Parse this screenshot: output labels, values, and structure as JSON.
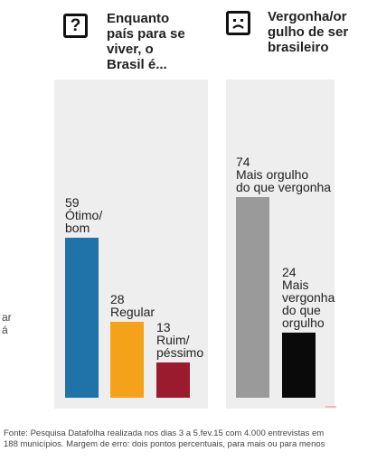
{
  "left_panel": {
    "icon": "question-mark-icon",
    "icon_glyph": "?",
    "title_lines": [
      "Enquanto",
      "país para se",
      "viver, o",
      "Brasil é..."
    ]
  },
  "right_panel": {
    "icon": "frown-face-icon",
    "title_lines": [
      "Vergonha/or",
      "gulho de ser",
      "brasileiro"
    ]
  },
  "cut_off_text": [
    "ar",
    "á"
  ],
  "footer": {
    "line1": "Fonte: Pesquisa Datafolha realizada nos dias 3 a 5.fev.15 com 4.000 entrevistas em",
    "line2": "188 municípios. Margem de erro: dois pontos percentuais, para mais ou para menos"
  },
  "colors": {
    "panel_bg": "#eeeeee",
    "blue": "#1f73a8",
    "orange": "#f5a21b",
    "red": "#9b1b2e",
    "gray": "#9a9a9a",
    "black": "#0a0a0a"
  },
  "chart_data": [
    {
      "type": "bar",
      "title": "Enquanto país para se viver, o Brasil é...",
      "ylim": [
        0,
        80
      ],
      "bars": [
        {
          "value": 59,
          "label_lines": [
            "Ótimo/",
            "bom"
          ],
          "color": "#1f73a8"
        },
        {
          "value": 28,
          "label_lines": [
            "Regular"
          ],
          "color": "#f5a21b"
        },
        {
          "value": 13,
          "label_lines": [
            "Ruim/",
            "péssimo"
          ],
          "color": "#9b1b2e"
        }
      ]
    },
    {
      "type": "bar",
      "title": "Vergonha/orgulho de ser brasileiro",
      "ylim": [
        0,
        80
      ],
      "bars": [
        {
          "value": 74,
          "label_lines": [
            "Mais orgulho",
            "do que vergonha"
          ],
          "color": "#9a9a9a"
        },
        {
          "value": 24,
          "label_lines": [
            "Mais",
            "vergonha",
            "do que",
            "orgulho"
          ],
          "color": "#0a0a0a"
        }
      ]
    }
  ]
}
